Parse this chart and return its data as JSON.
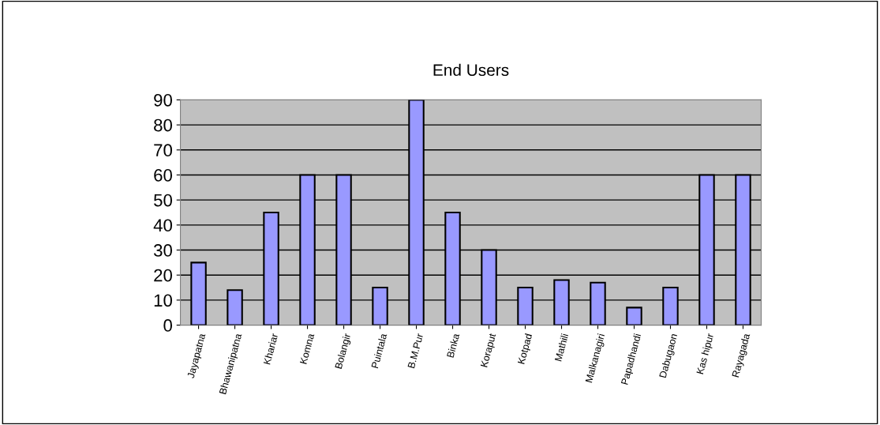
{
  "chart_data": {
    "type": "bar",
    "title": "End Users",
    "categories": [
      "Jayapatna",
      "Bhawanipatna",
      "Khariar",
      "Komna",
      "Bolangir",
      "Puintala",
      "B.M.Pur",
      "Binka",
      "Koraput",
      "Kotpad",
      "Mathili",
      "Malkanagiri",
      "Papadhandi",
      "Dabugaon",
      "Kas hipur",
      "Rayagada"
    ],
    "values": [
      25,
      14,
      45,
      60,
      60,
      15,
      90,
      45,
      30,
      15,
      18,
      17,
      7,
      15,
      60,
      60
    ],
    "color": "#9999ff",
    "ylim": [
      0,
      90
    ],
    "yticks": [
      0,
      10,
      20,
      30,
      40,
      50,
      60,
      70,
      80,
      90
    ],
    "grid": "y"
  }
}
